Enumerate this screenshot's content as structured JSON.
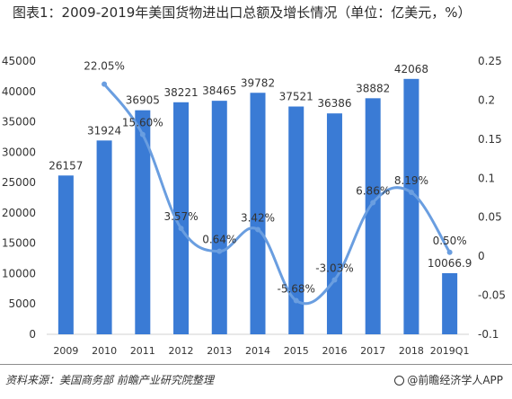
{
  "title": "图表1：2009-2019年美国货物进出口总额及增长情况（单位：亿美元，%）",
  "source": "资料来源：美国商务部 前瞻产业研究院整理",
  "brand": "@前瞻经济学人APP",
  "colors": {
    "bar": "#3a7bd5",
    "line": "#6a9ee0",
    "axis": "#d0d0d0",
    "text": "#333333"
  },
  "chart_data": {
    "type": "bar",
    "categories": [
      "2009",
      "2010",
      "2011",
      "2012",
      "2013",
      "2014",
      "2015",
      "2016",
      "2017",
      "2018",
      "2019Q1"
    ],
    "series": [
      {
        "type": "bar",
        "axis": "left",
        "values": [
          26157,
          31924,
          36905,
          38221,
          38465,
          39782,
          37521,
          36386,
          38882,
          42068,
          10066.9
        ],
        "labels": [
          "26157",
          "31924",
          "36905",
          "38221",
          "38465",
          "39782",
          "37521",
          "36386",
          "38882",
          "42068",
          "10066.9"
        ]
      },
      {
        "type": "line",
        "axis": "right",
        "values": [
          null,
          0.2205,
          0.156,
          0.0357,
          0.0064,
          0.0342,
          -0.0568,
          -0.0303,
          0.0686,
          0.0819,
          0.005
        ],
        "labels": [
          "",
          "22.05%",
          "15.60%",
          "3.57%",
          "0.64%",
          "3.42%",
          "-5.68%",
          "-3.03%",
          "6.86%",
          "8.19%",
          "0.50%"
        ]
      }
    ],
    "y_left": {
      "min": 0,
      "max": 45000,
      "ticks": [
        "0",
        "5000",
        "10000",
        "15000",
        "20000",
        "25000",
        "30000",
        "35000",
        "40000",
        "45000"
      ]
    },
    "y_right": {
      "min": -0.1,
      "max": 0.25,
      "ticks": [
        "-0.1",
        "-0.05",
        "0",
        "0.05",
        "0.1",
        "0.15",
        "0.2",
        "0.25"
      ]
    },
    "grid": false,
    "legend": "none"
  }
}
